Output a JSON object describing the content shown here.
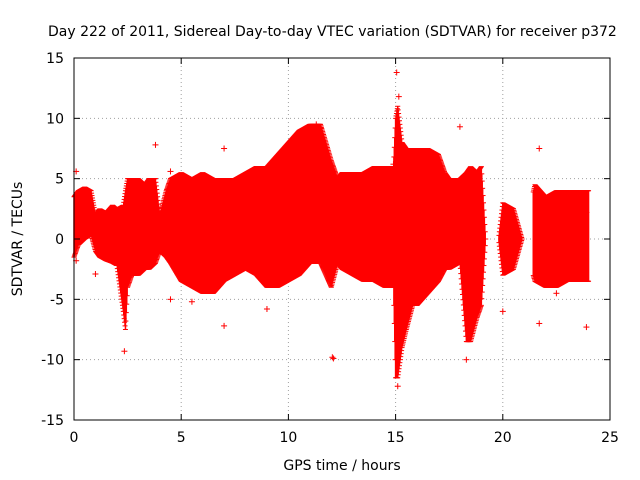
{
  "chart_data": {
    "type": "scatter",
    "title": "Day 222 of 2011, Sidereal Day-to-day VTEC variation (SDTVAR) for receiver p372",
    "xlabel": "GPS time / hours",
    "ylabel": "SDTVAR / TECUs",
    "xlim": [
      0,
      25
    ],
    "ylim": [
      -15,
      15
    ],
    "xticks": [
      0,
      5,
      10,
      15,
      20,
      25
    ],
    "yticks": [
      -15,
      -10,
      -5,
      0,
      5,
      10,
      15
    ],
    "grid": true,
    "marker": "+",
    "color": "#ff0000",
    "series": [
      {
        "name": "SDTVAR",
        "band_x": [
          0.0,
          0.2,
          0.5,
          0.8,
          1.0,
          1.2,
          1.5,
          1.8,
          2.0,
          2.3,
          2.4,
          2.5,
          2.7,
          3.0,
          3.3,
          3.5,
          3.8,
          4.0,
          4.3,
          4.5,
          5.0,
          5.5,
          6.0,
          6.5,
          7.0,
          7.5,
          8.0,
          8.5,
          9.0,
          9.5,
          10.0,
          10.5,
          11.0,
          11.5,
          12.0,
          12.3,
          12.5,
          13.0,
          13.5,
          14.0,
          14.5,
          14.9,
          15.0,
          15.1,
          15.3,
          15.5,
          15.8,
          16.0,
          16.5,
          17.0,
          17.3,
          17.5,
          18.0,
          18.3,
          18.5,
          18.8,
          19.0,
          19.2,
          19.8,
          20.0,
          20.5,
          20.9,
          21.5,
          22.0,
          22.5,
          23.0,
          23.5,
          24.0
        ],
        "band_upper": [
          3.5,
          4.0,
          4.3,
          4.0,
          2.0,
          2.5,
          2.2,
          2.8,
          2.5,
          2.8,
          4.0,
          5.0,
          5.0,
          5.0,
          4.5,
          5.0,
          5.0,
          2.0,
          4.0,
          5.0,
          5.5,
          5.0,
          5.5,
          5.0,
          5.0,
          5.0,
          5.5,
          6.0,
          6.0,
          7.0,
          8.0,
          9.0,
          9.5,
          9.5,
          6.5,
          5.0,
          5.5,
          5.5,
          5.5,
          6.0,
          6.0,
          6.0,
          10.0,
          11.0,
          8.0,
          7.5,
          7.5,
          7.5,
          7.5,
          7.0,
          5.5,
          5.0,
          5.0,
          5.5,
          6.0,
          5.5,
          6.0,
          0.0,
          0.0,
          3.0,
          2.5,
          0.0,
          4.5,
          3.5,
          4.0,
          4.0,
          4.0,
          4.0
        ],
        "band_lower": [
          -1.5,
          -0.5,
          0.0,
          0.3,
          -1.0,
          -1.5,
          -1.8,
          -2.0,
          -2.2,
          -6.0,
          -7.5,
          -4.0,
          -3.0,
          -3.0,
          -2.5,
          -2.5,
          -2.0,
          -1.0,
          -1.5,
          -2.0,
          -3.5,
          -4.0,
          -4.5,
          -4.5,
          -3.5,
          -3.0,
          -2.5,
          -3.0,
          -4.0,
          -4.0,
          -3.5,
          -3.0,
          -2.0,
          -2.0,
          -4.0,
          -2.0,
          -2.5,
          -3.0,
          -3.5,
          -3.5,
          -4.0,
          -4.0,
          -11.5,
          -11.5,
          -9.0,
          -7.5,
          -5.5,
          -5.5,
          -4.5,
          -3.5,
          -2.5,
          -2.5,
          -2.0,
          -8.5,
          -8.5,
          -6.5,
          -5.5,
          0.0,
          0.0,
          -3.0,
          -2.5,
          0.0,
          -3.5,
          -4.0,
          -4.0,
          -3.5,
          -3.5,
          -3.5
        ],
        "gaps_x": [
          [
            19.2,
            19.8
          ],
          [
            20.9,
            21.4
          ]
        ],
        "outliers_x": [
          0.1,
          0.1,
          1.0,
          2.35,
          2.5,
          3.8,
          4.5,
          4.5,
          5.5,
          7.0,
          7.0,
          9.0,
          11.3,
          11.5,
          12.05,
          12.1,
          14.9,
          15.05,
          15.1,
          15.15,
          18.0,
          18.3,
          20.0,
          21.7,
          21.7,
          22.5,
          23.9,
          23.9
        ],
        "outliers_y": [
          5.6,
          -1.8,
          -2.9,
          -9.3,
          3.3,
          7.8,
          5.6,
          -5.0,
          -5.2,
          7.5,
          -7.2,
          -5.8,
          9.5,
          9.2,
          -9.8,
          -9.9,
          6.2,
          13.8,
          -12.2,
          11.8,
          9.3,
          -10.0,
          -6.0,
          -7.0,
          7.5,
          -4.5,
          2.2,
          -7.3
        ]
      }
    ]
  }
}
